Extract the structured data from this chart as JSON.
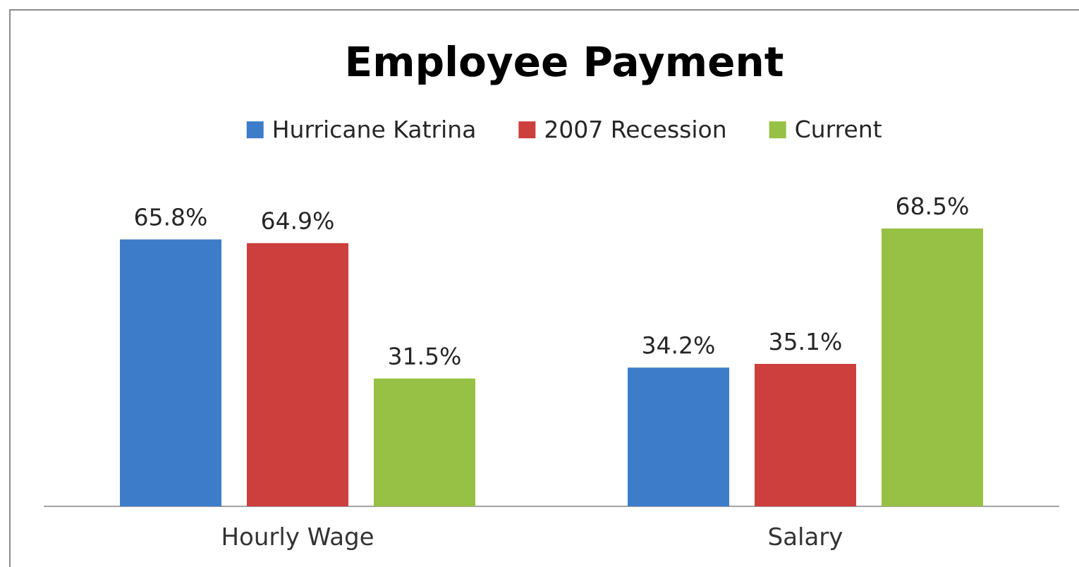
{
  "chart_data": {
    "type": "bar",
    "title": "Employee Payment",
    "categories": [
      "Hourly Wage",
      "Salary"
    ],
    "series": [
      {
        "name": "Hurricane Katrina",
        "color": "#3d7cc9",
        "values": [
          65.8,
          34.2
        ],
        "value_labels": [
          "65.8%",
          "34.2%"
        ]
      },
      {
        "name": "2007 Recession",
        "color": "#cc3f3c",
        "values": [
          64.9,
          35.1
        ],
        "value_labels": [
          "64.9%",
          "35.1%"
        ]
      },
      {
        "name": "Current",
        "color": "#97c144",
        "values": [
          31.5,
          68.5
        ],
        "value_labels": [
          "31.5%",
          "68.5%"
        ]
      }
    ],
    "tick_labels": "x",
    "legend": "top"
  }
}
